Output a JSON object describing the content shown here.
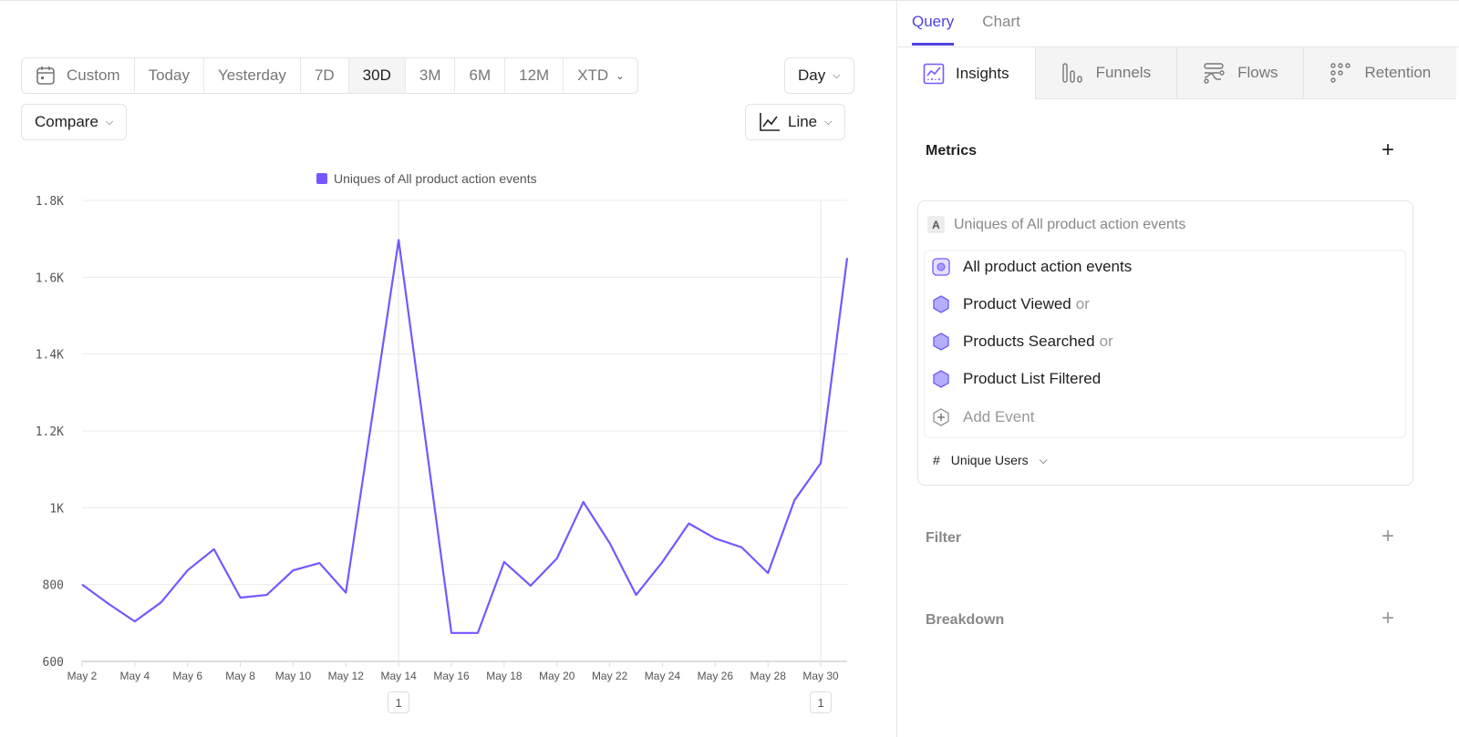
{
  "date_range": {
    "items": [
      "Custom",
      "Today",
      "Yesterday",
      "7D",
      "30D",
      "3M",
      "6M",
      "12M",
      "XTD"
    ],
    "selected": "30D"
  },
  "interval": {
    "label": "Day"
  },
  "compare": {
    "label": "Compare"
  },
  "chart_type": {
    "label": "Line",
    "icon": "line-chart-icon"
  },
  "annotations": [
    "1",
    "1"
  ],
  "chart_data": {
    "type": "line",
    "legend": "top-center",
    "grid": true,
    "series": [
      {
        "name": "Uniques of All product action events",
        "color": "#7856ff",
        "values": [
          800,
          750,
          704,
          754,
          837,
          892,
          766,
          773,
          837,
          856,
          779,
          1238,
          1697,
          1186,
          674,
          674,
          859,
          797,
          868,
          1015,
          908,
          773,
          859,
          959,
          920,
          897,
          830,
          1019,
          1116,
          1650
        ]
      }
    ],
    "x": [
      "May 2",
      "May 3",
      "May 4",
      "May 5",
      "May 6",
      "May 7",
      "May 8",
      "May 9",
      "May 10",
      "May 11",
      "May 12",
      "May 13",
      "May 14",
      "May 15",
      "May 16",
      "May 17",
      "May 18",
      "May 19",
      "May 20",
      "May 21",
      "May 22",
      "May 23",
      "May 24",
      "May 25",
      "May 26",
      "May 27",
      "May 28",
      "May 29",
      "May 30",
      "May 31"
    ],
    "x_tick_labels": [
      "May 2",
      "May 4",
      "May 6",
      "May 8",
      "May 10",
      "May 12",
      "May 14",
      "May 16",
      "May 18",
      "May 20",
      "May 22",
      "May 24",
      "May 26",
      "May 28",
      "May 30"
    ],
    "y_tick_labels": [
      "600",
      "800",
      "1K",
      "1.2K",
      "1.4K",
      "1.6K",
      "1.8K"
    ],
    "ylim": [
      600,
      1800
    ],
    "annotation_dates": [
      "May 14",
      "May 30"
    ]
  },
  "panel": {
    "tabs": [
      "Query",
      "Chart"
    ],
    "active_tab": "Query",
    "report_types": [
      "Insights",
      "Funnels",
      "Flows",
      "Retention"
    ],
    "metrics_label": "Metrics",
    "metric": {
      "letter": "A",
      "title": "Uniques of All product action events",
      "events": [
        {
          "name": "All product action events",
          "suffix": ""
        },
        {
          "name": "Product Viewed",
          "suffix": "or"
        },
        {
          "name": "Products Searched",
          "suffix": "or"
        },
        {
          "name": "Product List Filtered",
          "suffix": ""
        }
      ],
      "add_event": "Add Event",
      "measure": "Unique Users",
      "measure_symbol": "#"
    },
    "filter_label": "Filter",
    "breakdown_label": "Breakdown",
    "plus": "+"
  },
  "colors": {
    "accent": "#4f44e0",
    "series": "#7856ff"
  }
}
